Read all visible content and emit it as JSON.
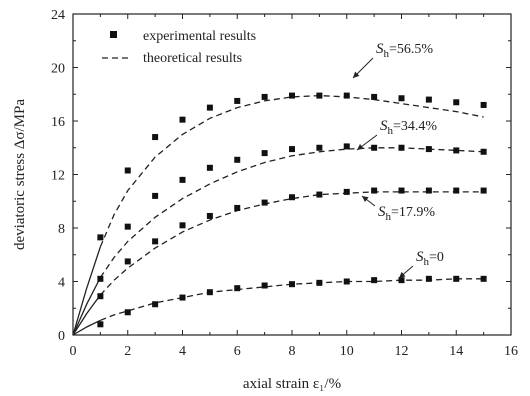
{
  "chart_data": {
    "type": "scatter",
    "title": "",
    "xlabel": "axial strain ε₁/%",
    "ylabel": "deviatoric stress Δσ/MPa",
    "xlim": [
      0,
      16
    ],
    "ylim": [
      0,
      24
    ],
    "xticks": [
      0,
      2,
      4,
      6,
      8,
      10,
      12,
      14,
      16
    ],
    "yticks": [
      0,
      4,
      8,
      12,
      16,
      20,
      24
    ],
    "grid": false,
    "legend": {
      "placement": "top-left",
      "entries": [
        {
          "label": "experimental results",
          "marker": "square"
        },
        {
          "label": "theoretical results",
          "marker": "dashed-line"
        }
      ]
    },
    "series": [
      {
        "annotation": {
          "symbol": "S",
          "subscript": "h",
          "text": "=56.5%"
        },
        "experimental": {
          "x": [
            1,
            2,
            3,
            4,
            5,
            6,
            7,
            8,
            9,
            10,
            11,
            12,
            13,
            14,
            15
          ],
          "y": [
            7.3,
            12.3,
            14.8,
            16.1,
            17.0,
            17.5,
            17.8,
            17.9,
            17.9,
            17.9,
            17.8,
            17.7,
            17.6,
            17.4,
            17.2
          ]
        },
        "theoretical": {
          "x": [
            0,
            0.5,
            1,
            1.5,
            2,
            3,
            4,
            5,
            6,
            7,
            8,
            9,
            10,
            11,
            12,
            13,
            14,
            15
          ],
          "y": [
            0,
            3.5,
            6.6,
            9.0,
            10.8,
            13.3,
            15.0,
            16.2,
            17.0,
            17.5,
            17.8,
            17.9,
            17.8,
            17.6,
            17.3,
            17.0,
            16.7,
            16.3
          ]
        }
      },
      {
        "annotation": {
          "symbol": "S",
          "subscript": "h",
          "text": "=34.4%"
        },
        "experimental": {
          "x": [
            1,
            2,
            3,
            4,
            5,
            6,
            7,
            8,
            9,
            10,
            11,
            12,
            13,
            14,
            15
          ],
          "y": [
            4.2,
            8.1,
            10.4,
            11.6,
            12.5,
            13.1,
            13.6,
            13.9,
            14.0,
            14.1,
            14.0,
            14.0,
            13.9,
            13.8,
            13.7
          ]
        },
        "theoretical": {
          "x": [
            0,
            0.5,
            1,
            1.5,
            2,
            3,
            4,
            5,
            6,
            7,
            8,
            9,
            10,
            11,
            12,
            13,
            14,
            15
          ],
          "y": [
            0,
            2.3,
            4.3,
            5.8,
            7.0,
            8.8,
            10.2,
            11.3,
            12.2,
            12.9,
            13.4,
            13.7,
            13.9,
            14.0,
            14.0,
            13.9,
            13.8,
            13.7
          ]
        }
      },
      {
        "annotation": {
          "symbol": "S",
          "subscript": "h",
          "text": "=17.9%"
        },
        "experimental": {
          "x": [
            1,
            2,
            3,
            4,
            5,
            6,
            7,
            8,
            9,
            10,
            11,
            12,
            13,
            14,
            15
          ],
          "y": [
            2.9,
            5.5,
            7.0,
            8.2,
            8.9,
            9.5,
            9.9,
            10.3,
            10.5,
            10.7,
            10.8,
            10.8,
            10.8,
            10.8,
            10.8
          ]
        },
        "theoretical": {
          "x": [
            0,
            0.5,
            1,
            1.5,
            2,
            3,
            4,
            5,
            6,
            7,
            8,
            9,
            10,
            11,
            12,
            13,
            14,
            15
          ],
          "y": [
            0,
            1.6,
            3.0,
            4.1,
            5.0,
            6.5,
            7.7,
            8.6,
            9.3,
            9.8,
            10.2,
            10.5,
            10.6,
            10.7,
            10.7,
            10.7,
            10.7,
            10.7
          ]
        }
      },
      {
        "annotation": {
          "symbol": "S",
          "subscript": "h",
          "text": "=0"
        },
        "experimental": {
          "x": [
            1,
            2,
            3,
            4,
            5,
            6,
            7,
            8,
            9,
            10,
            11,
            12,
            13,
            14,
            15
          ],
          "y": [
            0.8,
            1.7,
            2.3,
            2.8,
            3.2,
            3.5,
            3.7,
            3.8,
            3.9,
            4.0,
            4.1,
            4.1,
            4.2,
            4.2,
            4.2
          ]
        },
        "theoretical": {
          "x": [
            0,
            0.5,
            1,
            1.5,
            2,
            3,
            4,
            5,
            6,
            7,
            8,
            9,
            10,
            11,
            12,
            13,
            14,
            15
          ],
          "y": [
            0,
            0.6,
            1.1,
            1.5,
            1.8,
            2.4,
            2.8,
            3.2,
            3.4,
            3.6,
            3.8,
            3.9,
            4.0,
            4.0,
            4.1,
            4.1,
            4.2,
            4.2
          ]
        }
      }
    ]
  }
}
